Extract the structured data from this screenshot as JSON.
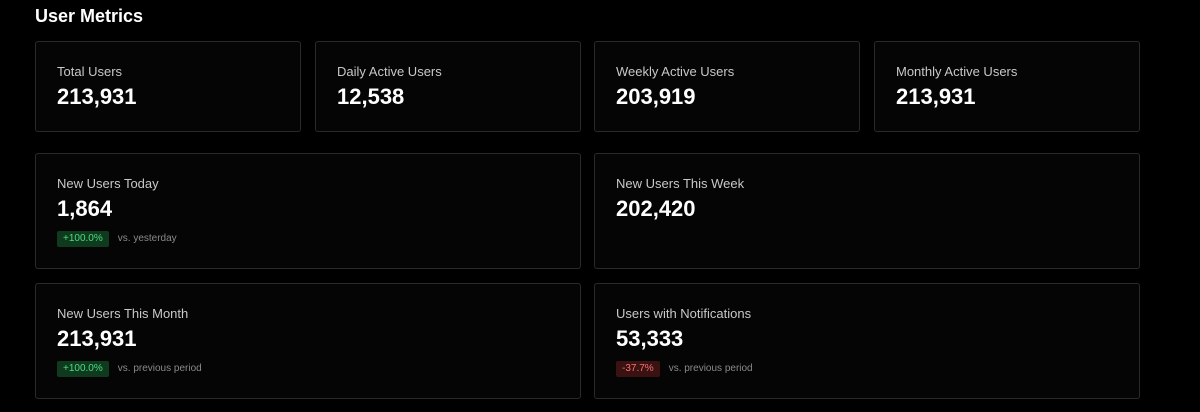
{
  "header": {
    "title": "User Metrics"
  },
  "top_cards": [
    {
      "label": "Total Users",
      "value": "213,931"
    },
    {
      "label": "Daily Active Users",
      "value": "12,538"
    },
    {
      "label": "Weekly Active Users",
      "value": "203,919"
    },
    {
      "label": "Monthly Active Users",
      "value": "213,931"
    }
  ],
  "mid_cards": [
    {
      "label": "New Users Today",
      "value": "1,864",
      "delta": "+100.0%",
      "comparison": "vs. yesterday",
      "trend": "up"
    },
    {
      "label": "New Users This Week",
      "value": "202,420"
    }
  ],
  "bottom_cards": [
    {
      "label": "New Users This Month",
      "value": "213,931",
      "delta": "+100.0%",
      "comparison": "vs. previous period",
      "trend": "up"
    },
    {
      "label": "Users with Notifications",
      "value": "53,333",
      "delta": "-37.7%",
      "comparison": "vs. previous period",
      "trend": "down"
    }
  ],
  "colors": {
    "background": "#000000",
    "card_border": "#2a2a2a",
    "positive": "#4ade80",
    "negative": "#f87171"
  }
}
